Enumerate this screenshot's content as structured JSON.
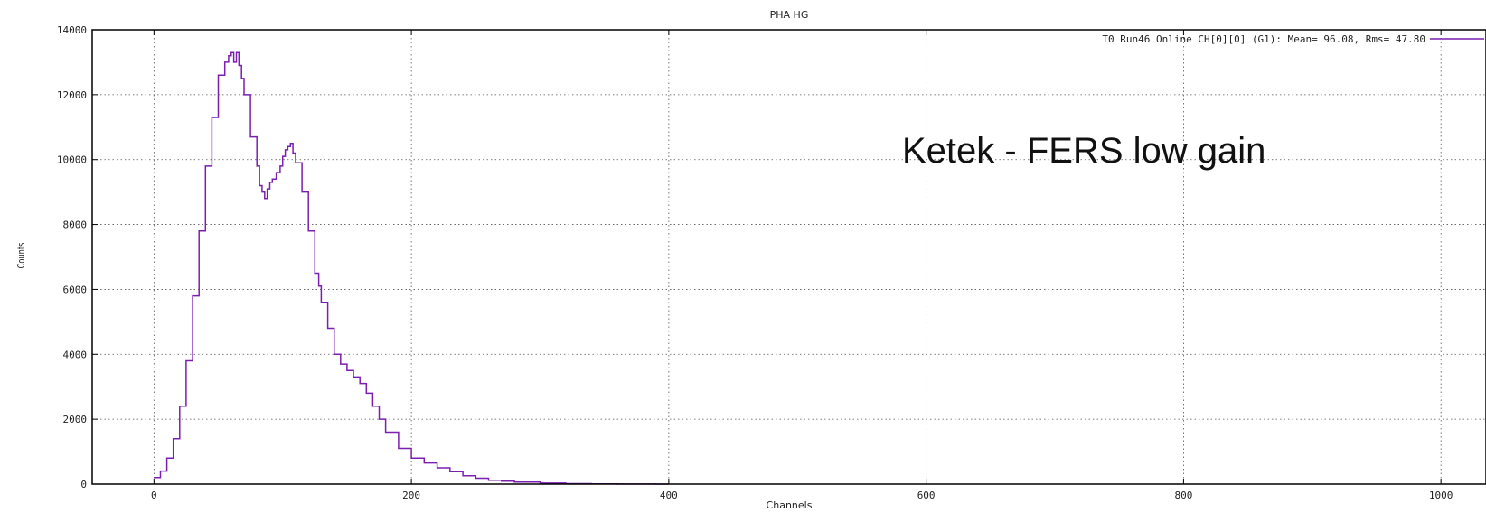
{
  "chart_data": {
    "type": "line",
    "title": "PHA HG",
    "xlabel": "Channels",
    "ylabel": "Counts",
    "xlim": [
      -48,
      1035
    ],
    "ylim": [
      0,
      14000
    ],
    "x_ticks": [
      0,
      200,
      400,
      600,
      800,
      1000
    ],
    "y_ticks": [
      0,
      2000,
      4000,
      6000,
      8000,
      10000,
      12000,
      14000
    ],
    "grid": true,
    "legend_position": "top-right",
    "annotation": "Ketek  -  FERS  low gain",
    "series": [
      {
        "name": "T0 Run46 Online CH[0][0] (G1): Mean= 96.08, Rms= 47.80",
        "color": "#7b1fb0",
        "x": [
          0,
          5,
          10,
          15,
          20,
          25,
          30,
          35,
          40,
          45,
          50,
          55,
          58,
          60,
          62,
          64,
          66,
          68,
          70,
          75,
          80,
          82,
          84,
          86,
          88,
          90,
          92,
          95,
          98,
          100,
          102,
          104,
          106,
          108,
          110,
          115,
          120,
          125,
          128,
          130,
          135,
          140,
          145,
          150,
          155,
          160,
          165,
          170,
          175,
          180,
          190,
          200,
          210,
          220,
          230,
          240,
          250,
          260,
          270,
          280,
          300,
          320,
          340,
          360,
          380,
          390,
          400
        ],
        "y": [
          200,
          400,
          800,
          1400,
          2400,
          3800,
          5800,
          7800,
          9800,
          11300,
          12600,
          13000,
          13200,
          13300,
          13000,
          13300,
          12900,
          12500,
          12000,
          10700,
          9800,
          9200,
          9000,
          8800,
          9100,
          9300,
          9400,
          9600,
          9800,
          10100,
          10300,
          10400,
          10500,
          10200,
          9900,
          9000,
          7800,
          6500,
          6100,
          5600,
          4800,
          4000,
          3700,
          3500,
          3300,
          3100,
          2800,
          2400,
          2000,
          1600,
          1100,
          800,
          650,
          500,
          380,
          260,
          180,
          120,
          90,
          60,
          30,
          15,
          8,
          4,
          2,
          0,
          0
        ]
      }
    ]
  }
}
